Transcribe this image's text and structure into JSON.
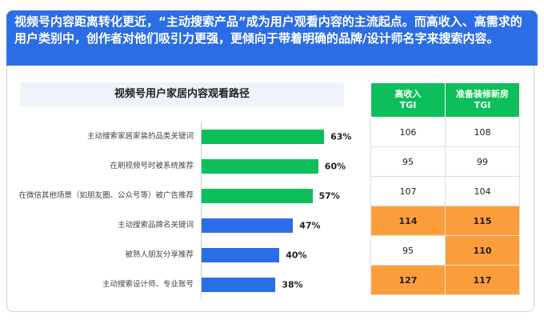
{
  "header": {
    "text": "视频号内容距离转化更近，“主动搜索产品”成为用户观看内容的主流起点。而高收入、高需求的用户类别中，创作者对他们吸引力更强，更倾向于带着明确的品牌/设计师名字来搜索内容。"
  },
  "colors": {
    "header": "#2b6de6",
    "green": "#0dbf5b",
    "blue": "#2b6de6",
    "highlight": "#fc9d3c"
  },
  "chart_data": {
    "type": "bar",
    "orientation": "horizontal",
    "title": "视频号用户家居内容观看路径",
    "categories": [
      "主动搜索家居家装的品类关键词",
      "在刷视频号时被系统推荐",
      "在微信其他场景（如朋友圈、公众号等）被广告推荐",
      "主动搜索品牌名关键词",
      "被熟人朋友分享推荐",
      "主动搜索设计师、专业账号"
    ],
    "values": [
      63,
      60,
      57,
      47,
      40,
      38
    ],
    "labels": [
      "63%",
      "60%",
      "57%",
      "47%",
      "40%",
      "38%"
    ],
    "bar_colors": [
      "#0dbf5b",
      "#0dbf5b",
      "#0dbf5b",
      "#2b6de6",
      "#2b6de6",
      "#2b6de6"
    ],
    "unit": "%"
  },
  "table": {
    "columns": [
      {
        "line1": "高收入",
        "line2": "TGI"
      },
      {
        "line1": "准备装修新房",
        "line2": "TGI"
      }
    ],
    "rows": [
      [
        106,
        108
      ],
      [
        95,
        99
      ],
      [
        107,
        104
      ],
      [
        114,
        115
      ],
      [
        95,
        110
      ],
      [
        127,
        117
      ]
    ],
    "highlight_threshold": 110
  }
}
